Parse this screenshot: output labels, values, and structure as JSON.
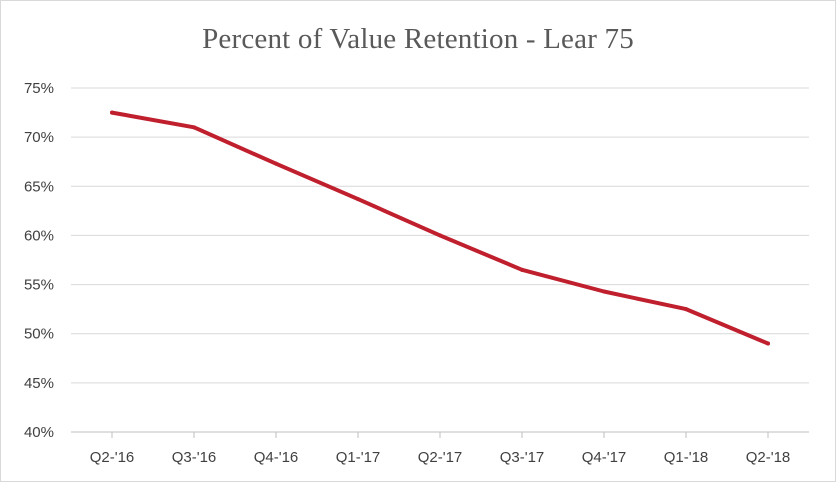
{
  "chart_data": {
    "type": "line",
    "title": "Percent of Value Retention - Lear 75",
    "xlabel": "",
    "ylabel": "",
    "categories": [
      "Q2-'16",
      "Q3-'16",
      "Q4-'16",
      "Q1-'17",
      "Q2-'17",
      "Q3-'17",
      "Q4-'17",
      "Q1-'18",
      "Q2-'18"
    ],
    "series": [
      {
        "values": [
          72.5,
          71.0,
          67.3,
          63.7,
          60.0,
          56.5,
          54.3,
          52.5,
          49.0
        ],
        "color": "#c0202e"
      }
    ],
    "ylim": [
      40,
      75
    ],
    "yticks": [
      40,
      45,
      50,
      55,
      60,
      65,
      70,
      75
    ],
    "ytick_labels": [
      "40%",
      "45%",
      "50%",
      "55%",
      "60%",
      "65%",
      "70%",
      "75%"
    ],
    "grid": "horizontal",
    "legend": "none"
  }
}
